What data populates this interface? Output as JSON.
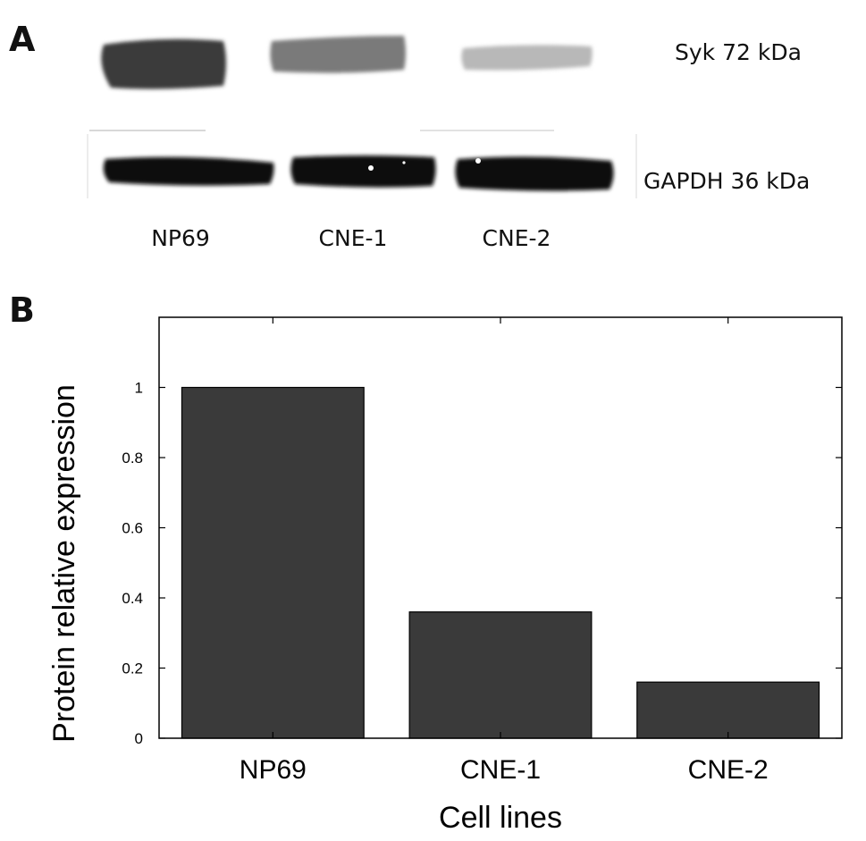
{
  "panels": {
    "a": "A",
    "b": "B"
  },
  "blot": {
    "bands": [
      {
        "name": "Syk 72 kDa",
        "intensity": [
          1.0,
          0.55,
          0.3
        ]
      },
      {
        "name": "GAPDH 36 kDa",
        "intensity": [
          1.0,
          1.0,
          1.0
        ]
      }
    ],
    "lanes": [
      "NP69",
      "CNE-1",
      "CNE-2"
    ]
  },
  "chart_data": {
    "type": "bar",
    "categories": [
      "NP69",
      "CNE-1",
      "CNE-2"
    ],
    "values": [
      1.0,
      0.36,
      0.16
    ],
    "title": "",
    "xlabel": "Cell lines",
    "ylabel": "Protein relative expression",
    "ylim": [
      0,
      1.2
    ],
    "yticks": [
      "0",
      "0.2",
      "0.4",
      "0.6",
      "0.8",
      "1"
    ],
    "bar_color": "#3a3a3a",
    "grid": false
  }
}
